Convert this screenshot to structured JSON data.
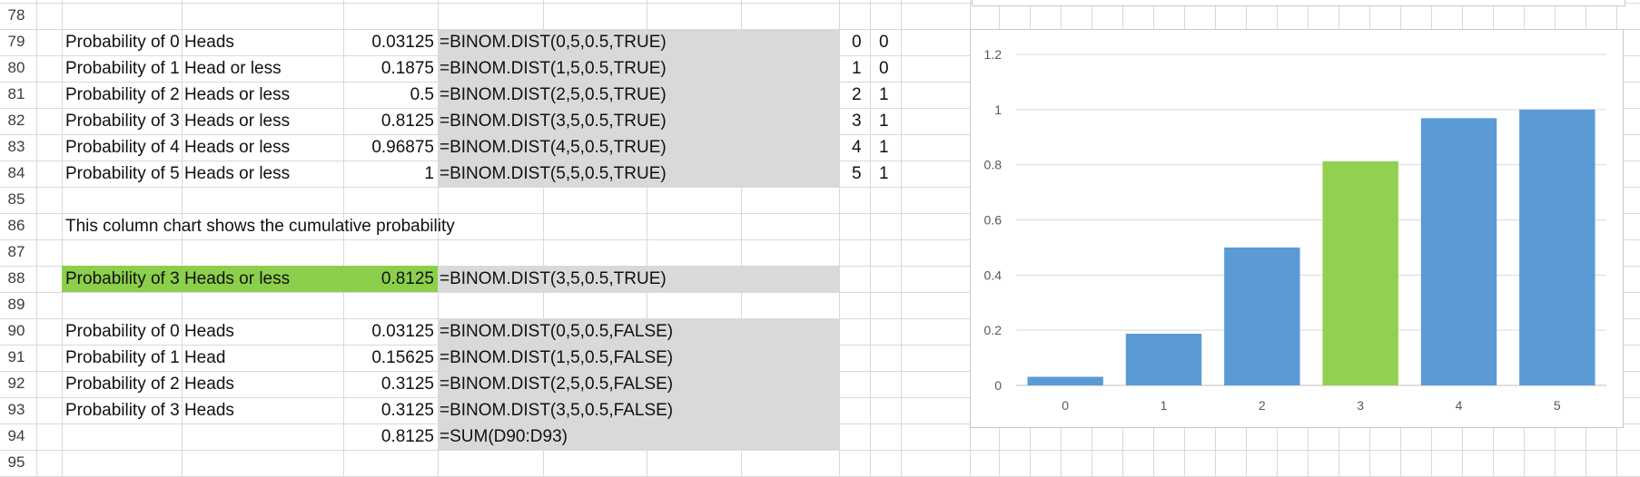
{
  "row_numbers": [
    "78",
    "79",
    "80",
    "81",
    "82",
    "83",
    "84",
    "85",
    "86",
    "87",
    "88",
    "89",
    "90",
    "91",
    "92",
    "93",
    "94",
    "95"
  ],
  "cumulative": [
    {
      "label": "Probability of 0 Heads",
      "value": "0.03125",
      "formula": "=BINOM.DIST(0,5,0.5,TRUE)",
      "k": "0",
      "flag": "0"
    },
    {
      "label": "Probability of 1 Head or less",
      "value": "0.1875",
      "formula": "=BINOM.DIST(1,5,0.5,TRUE)",
      "k": "1",
      "flag": "0"
    },
    {
      "label": "Probability of 2 Heads or less",
      "value": "0.5",
      "formula": "=BINOM.DIST(2,5,0.5,TRUE)",
      "k": "2",
      "flag": "1"
    },
    {
      "label": "Probability of 3 Heads or less",
      "value": "0.8125",
      "formula": "=BINOM.DIST(3,5,0.5,TRUE)",
      "k": "3",
      "flag": "1"
    },
    {
      "label": "Probability of 4 Heads or less",
      "value": "0.96875",
      "formula": "=BINOM.DIST(4,5,0.5,TRUE)",
      "k": "4",
      "flag": "1"
    },
    {
      "label": "Probability of 5 Heads or less",
      "value": "1",
      "formula": "=BINOM.DIST(5,5,0.5,TRUE)",
      "k": "5",
      "flag": "1"
    }
  ],
  "note": "This column chart shows the cumulative probability",
  "highlight": {
    "label": "Probability of 3 Heads or less",
    "value": "0.8125",
    "formula": "=BINOM.DIST(3,5,0.5,TRUE)"
  },
  "exact": [
    {
      "label": "Probability of 0 Heads",
      "value": "0.03125",
      "formula": "=BINOM.DIST(0,5,0.5,FALSE)"
    },
    {
      "label": "Probability of 1 Head",
      "value": "0.15625",
      "formula": "=BINOM.DIST(1,5,0.5,FALSE)"
    },
    {
      "label": "Probability of 2 Heads",
      "value": "0.3125",
      "formula": "=BINOM.DIST(2,5,0.5,FALSE)"
    },
    {
      "label": "Probability of 3 Heads",
      "value": "0.3125",
      "formula": "=BINOM.DIST(3,5,0.5,FALSE)"
    }
  ],
  "sum_row": {
    "value": "0.8125",
    "formula": "=SUM(D90:D93)"
  },
  "colors": {
    "bar": "#5b9bd5",
    "highlight_bar": "#92d050",
    "highlight_cell": "#8ccf4b",
    "formula_fill": "#d9d9d9"
  },
  "chart_data": {
    "type": "bar",
    "categories": [
      "0",
      "1",
      "2",
      "3",
      "4",
      "5"
    ],
    "values": [
      0.03125,
      0.1875,
      0.5,
      0.8125,
      0.96875,
      1
    ],
    "highlight_index": 3,
    "ylim": [
      0,
      1.2
    ],
    "yticks": [
      "0",
      "0.2",
      "0.4",
      "0.6",
      "0.8",
      "1",
      "1.2"
    ],
    "grid": true,
    "title": "",
    "xlabel": "",
    "ylabel": ""
  }
}
